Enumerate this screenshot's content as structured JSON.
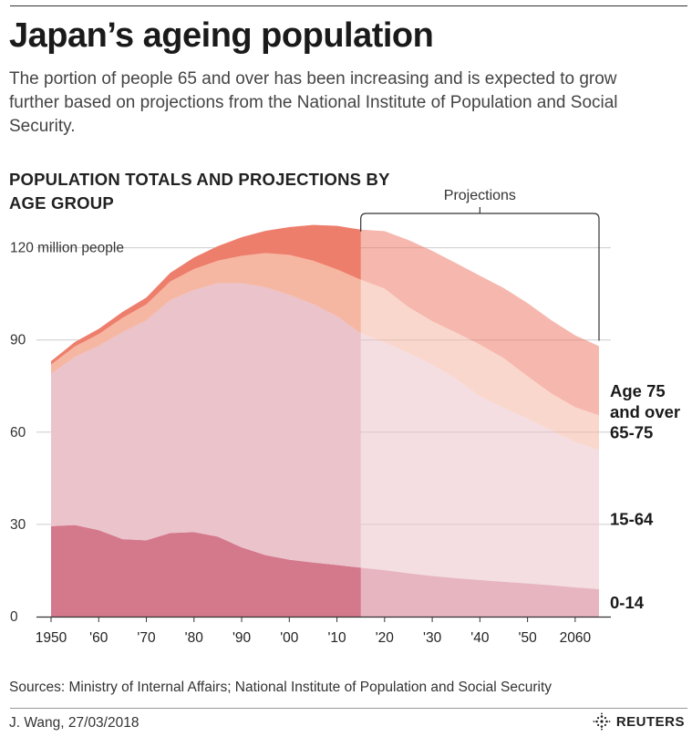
{
  "header": {
    "title": "Japan’s ageing population",
    "subtitle": "The portion of people 65 and over has been increasing and is expected to grow further based on projections from the National Institute of Population and Social Security."
  },
  "footer": {
    "sources": "Sources: Ministry of Internal Affairs; National Institute of Population and Social Security",
    "credit": "J. Wang,  27/03/2018",
    "logo_text": "REUTERS",
    "logo_icon": "reuters-logo-icon"
  },
  "colors": {
    "age_0_14": "#d4788c",
    "age_15_64": "#ebc3cb",
    "age_65_75": "#f6b7a2",
    "age_75_over": "#ee7e6c",
    "gridline": "#cccccc"
  },
  "chart_data": {
    "type": "area",
    "title": "POPULATION TOTALS AND PROJECTIONS BY AGE GROUP",
    "y_unit_label": "120 million people",
    "ylim": [
      0,
      128
    ],
    "xlim": [
      1950,
      2065
    ],
    "y_ticks": [
      {
        "value": 0,
        "label": "0"
      },
      {
        "value": 30,
        "label": "30"
      },
      {
        "value": 60,
        "label": "60"
      },
      {
        "value": 90,
        "label": "90"
      },
      {
        "value": 120,
        "label": "120 million people"
      }
    ],
    "x_ticks": [
      {
        "value": 1950,
        "label": "1950"
      },
      {
        "value": 1960,
        "label": "'60"
      },
      {
        "value": 1970,
        "label": "'70"
      },
      {
        "value": 1980,
        "label": "'80"
      },
      {
        "value": 1990,
        "label": "'90"
      },
      {
        "value": 2000,
        "label": "'00"
      },
      {
        "value": 2010,
        "label": "'10"
      },
      {
        "value": 2020,
        "label": "'20"
      },
      {
        "value": 2030,
        "label": "'30"
      },
      {
        "value": 2040,
        "label": "'40"
      },
      {
        "value": 2050,
        "label": "'50"
      },
      {
        "value": 2060,
        "label": "2060"
      }
    ],
    "stacked": true,
    "projection_start": 2015,
    "projection_label": "Projections",
    "x": [
      1950,
      1955,
      1960,
      1965,
      1970,
      1975,
      1980,
      1985,
      1990,
      1995,
      2000,
      2005,
      2010,
      2015,
      2020,
      2025,
      2030,
      2035,
      2040,
      2045,
      2050,
      2055,
      2060,
      2065
    ],
    "series": [
      {
        "name": "0-14",
        "values": [
          29.4,
          29.8,
          28.1,
          25.2,
          24.8,
          27.2,
          27.5,
          26.0,
          22.5,
          20.0,
          18.5,
          17.6,
          16.8,
          15.9,
          15.1,
          14.1,
          13.2,
          12.5,
          11.9,
          11.3,
          10.8,
          10.2,
          9.5,
          8.9
        ]
      },
      {
        "name": "15-64",
        "values": [
          49.6,
          54.7,
          60.0,
          67.4,
          71.6,
          75.8,
          78.8,
          82.5,
          86.0,
          87.2,
          86.2,
          84.1,
          81.0,
          76.3,
          74.1,
          71.7,
          68.8,
          64.9,
          59.8,
          56.6,
          53.6,
          50.4,
          47.3,
          45.3
        ]
      },
      {
        "name": "65-75",
        "values": [
          3.0,
          3.4,
          3.8,
          4.6,
          5.2,
          6.0,
          6.8,
          7.3,
          8.9,
          11.1,
          13.0,
          14.1,
          15.2,
          17.4,
          17.5,
          14.9,
          14.1,
          15.0,
          16.8,
          16.2,
          13.8,
          12.0,
          11.3,
          11.3
        ]
      },
      {
        "name": "Age 75 and over",
        "values": [
          1.1,
          1.4,
          1.7,
          1.9,
          2.2,
          2.8,
          3.7,
          4.7,
          6.0,
          7.2,
          9.0,
          11.6,
          14.1,
          16.3,
          18.7,
          21.8,
          22.9,
          22.6,
          22.4,
          22.8,
          23.8,
          23.8,
          23.4,
          22.5
        ]
      }
    ],
    "legend": [
      {
        "name": "Age 75 and over",
        "lines": [
          "Age 75",
          "and over"
        ]
      },
      {
        "name": "65-75",
        "lines": [
          "65-75"
        ]
      },
      {
        "name": "15-64",
        "lines": [
          "15-64"
        ]
      },
      {
        "name": "0-14",
        "lines": [
          "0-14"
        ]
      }
    ],
    "legend_position": "right (direct labels)",
    "grid": "horizontal"
  }
}
